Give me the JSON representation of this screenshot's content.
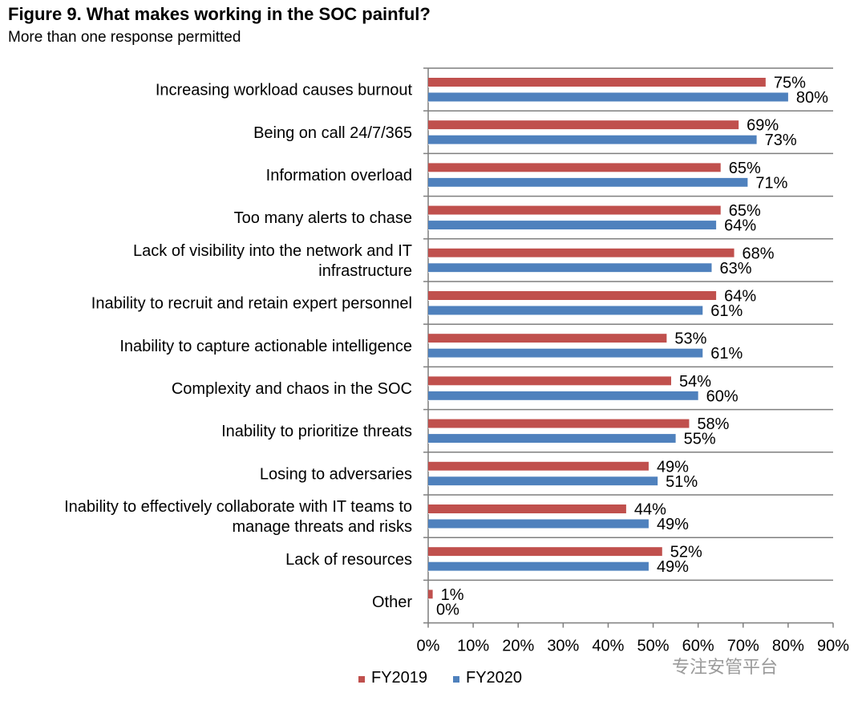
{
  "title": "Figure 9. What makes working in the SOC painful?",
  "subtitle": "More than one response permitted",
  "watermark": "专注安管平台",
  "colors": {
    "FY2019": "#c0504d",
    "FY2020": "#4f81bd",
    "grid": "#7f7f7f"
  },
  "chart_data": {
    "type": "bar",
    "orientation": "horizontal",
    "categories": [
      [
        "Increasing workload causes burnout"
      ],
      [
        "Being on call 24/7/365"
      ],
      [
        "Information overload"
      ],
      [
        "Too many alerts to chase"
      ],
      [
        "Lack of visibility into the network and IT",
        "infrastructure"
      ],
      [
        "Inability to recruit and retain expert personnel"
      ],
      [
        "Inability to capture actionable intelligence"
      ],
      [
        "Complexity and chaos in the SOC"
      ],
      [
        "Inability to prioritize threats"
      ],
      [
        "Losing to adversaries"
      ],
      [
        "Inability to effectively collaborate with IT teams to",
        "manage threats and risks"
      ],
      [
        "Lack of resources"
      ],
      [
        "Other"
      ]
    ],
    "series": [
      {
        "name": "FY2019",
        "values": [
          75,
          69,
          65,
          65,
          68,
          64,
          53,
          54,
          58,
          49,
          44,
          52,
          1
        ]
      },
      {
        "name": "FY2020",
        "values": [
          80,
          73,
          71,
          64,
          63,
          61,
          61,
          60,
          55,
          51,
          49,
          49,
          0
        ]
      }
    ],
    "xlim": [
      0,
      90
    ],
    "xticks": [
      0,
      10,
      20,
      30,
      40,
      50,
      60,
      70,
      80,
      90
    ],
    "tick_format": "%",
    "grid": "horizontal separators between categories",
    "legend": "bottom-center"
  }
}
